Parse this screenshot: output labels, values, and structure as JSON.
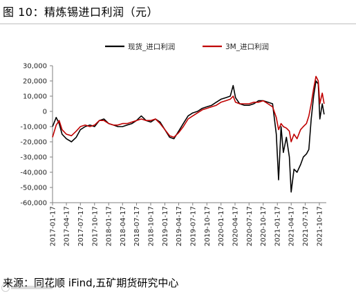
{
  "header": {
    "title": "图 10：精炼锡进口利润（元）"
  },
  "footer": {
    "source": "来源：同花顺 iFind,五矿期货研究中心"
  },
  "colors": {
    "spot": "#000000",
    "three_month": "#c00000",
    "axis": "#7f7f7f"
  },
  "chart_data": {
    "type": "line",
    "title": "",
    "xlabel": "",
    "ylabel": "",
    "ylim": [
      -60000,
      30000
    ],
    "y_ticks": [
      30000,
      20000,
      10000,
      0,
      -10000,
      -20000,
      -30000,
      -40000,
      -50000,
      -60000
    ],
    "y_tick_labels": [
      "30,000",
      "20,000",
      "10,000",
      "0",
      "-10,000",
      "-20,000",
      "-30,000",
      "-40,000",
      "-50,000",
      "-60,000"
    ],
    "x_ticks": [
      "2017-01-17",
      "2017-04-17",
      "2017-07-17",
      "2017-10-17",
      "2018-01-17",
      "2018-04-17",
      "2018-07-17",
      "2018-10-17",
      "2019-01-17",
      "2019-04-17",
      "2019-07-17",
      "2019-10-17",
      "2020-01-17",
      "2020-04-17",
      "2020-07-17",
      "2020-10-17",
      "2021-01-17",
      "2021-04-17",
      "2021-07-17",
      "2021-10-17"
    ],
    "legend_position": "top-center",
    "series": [
      {
        "name": "现货_进口利润",
        "points": [
          [
            "2017-01-17",
            -10000
          ],
          [
            "2017-02-10",
            -4000
          ],
          [
            "2017-03-01",
            -8000
          ],
          [
            "2017-03-20",
            -15000
          ],
          [
            "2017-04-17",
            -18000
          ],
          [
            "2017-05-20",
            -20000
          ],
          [
            "2017-06-20",
            -17000
          ],
          [
            "2017-07-17",
            -12000
          ],
          [
            "2017-08-17",
            -10000
          ],
          [
            "2017-09-17",
            -9000
          ],
          [
            "2017-10-17",
            -10000
          ],
          [
            "2017-11-17",
            -6000
          ],
          [
            "2017-12-17",
            -5000
          ],
          [
            "2018-01-17",
            -8000
          ],
          [
            "2018-02-17",
            -9000
          ],
          [
            "2018-03-17",
            -10000
          ],
          [
            "2018-04-17",
            -10000
          ],
          [
            "2018-05-17",
            -9000
          ],
          [
            "2018-06-17",
            -8000
          ],
          [
            "2018-07-17",
            -6000
          ],
          [
            "2018-08-17",
            -3000
          ],
          [
            "2018-09-17",
            -6000
          ],
          [
            "2018-10-17",
            -7000
          ],
          [
            "2018-11-17",
            -5000
          ],
          [
            "2018-12-17",
            -7000
          ],
          [
            "2019-01-17",
            -12000
          ],
          [
            "2019-02-17",
            -17000
          ],
          [
            "2019-03-17",
            -18000
          ],
          [
            "2019-04-17",
            -13000
          ],
          [
            "2019-05-17",
            -8000
          ],
          [
            "2019-06-17",
            -3000
          ],
          [
            "2019-07-17",
            -1000
          ],
          [
            "2019-08-17",
            0
          ],
          [
            "2019-09-17",
            2000
          ],
          [
            "2019-10-17",
            3000
          ],
          [
            "2019-11-17",
            4000
          ],
          [
            "2019-12-17",
            6000
          ],
          [
            "2020-01-17",
            8000
          ],
          [
            "2020-02-17",
            9000
          ],
          [
            "2020-03-17",
            10000
          ],
          [
            "2020-04-05",
            17000
          ],
          [
            "2020-04-20",
            9000
          ],
          [
            "2020-05-17",
            5000
          ],
          [
            "2020-06-17",
            4000
          ],
          [
            "2020-07-17",
            4000
          ],
          [
            "2020-08-17",
            5000
          ],
          [
            "2020-09-17",
            7000
          ],
          [
            "2020-10-17",
            7000
          ],
          [
            "2020-11-17",
            6000
          ],
          [
            "2020-12-17",
            5000
          ],
          [
            "2021-01-10",
            -15000
          ],
          [
            "2021-01-25",
            -45000
          ],
          [
            "2021-02-10",
            -10000
          ],
          [
            "2021-02-25",
            -27000
          ],
          [
            "2021-03-17",
            -17000
          ],
          [
            "2021-04-05",
            -30000
          ],
          [
            "2021-04-17",
            -53000
          ],
          [
            "2021-05-05",
            -38000
          ],
          [
            "2021-05-25",
            -40000
          ],
          [
            "2021-06-17",
            -35000
          ],
          [
            "2021-07-05",
            -30000
          ],
          [
            "2021-07-25",
            -28000
          ],
          [
            "2021-08-10",
            -25000
          ],
          [
            "2021-08-25",
            -5000
          ],
          [
            "2021-09-10",
            10000
          ],
          [
            "2021-09-25",
            20000
          ],
          [
            "2021-10-10",
            18000
          ],
          [
            "2021-10-20",
            -5000
          ],
          [
            "2021-11-05",
            5000
          ],
          [
            "2021-11-17",
            -2000
          ]
        ]
      },
      {
        "name": "3M_进口利润",
        "points": [
          [
            "2017-01-17",
            -17000
          ],
          [
            "2017-02-10",
            -9000
          ],
          [
            "2017-03-01",
            -6000
          ],
          [
            "2017-03-20",
            -12000
          ],
          [
            "2017-04-17",
            -15000
          ],
          [
            "2017-05-20",
            -16000
          ],
          [
            "2017-06-20",
            -13000
          ],
          [
            "2017-07-17",
            -10000
          ],
          [
            "2017-08-17",
            -9000
          ],
          [
            "2017-09-17",
            -10000
          ],
          [
            "2017-10-17",
            -9000
          ],
          [
            "2017-11-17",
            -6000
          ],
          [
            "2017-12-17",
            -6000
          ],
          [
            "2018-01-17",
            -8000
          ],
          [
            "2018-02-17",
            -9000
          ],
          [
            "2018-03-17",
            -9000
          ],
          [
            "2018-04-17",
            -8000
          ],
          [
            "2018-05-17",
            -8000
          ],
          [
            "2018-06-17",
            -7000
          ],
          [
            "2018-07-17",
            -6000
          ],
          [
            "2018-08-17",
            -5000
          ],
          [
            "2018-09-17",
            -6000
          ],
          [
            "2018-10-17",
            -6000
          ],
          [
            "2018-11-17",
            -5000
          ],
          [
            "2018-12-17",
            -8000
          ],
          [
            "2019-01-17",
            -12000
          ],
          [
            "2019-02-17",
            -16000
          ],
          [
            "2019-03-17",
            -17000
          ],
          [
            "2019-04-17",
            -14000
          ],
          [
            "2019-05-17",
            -10000
          ],
          [
            "2019-06-17",
            -5000
          ],
          [
            "2019-07-17",
            -3000
          ],
          [
            "2019-08-17",
            -1000
          ],
          [
            "2019-09-17",
            1000
          ],
          [
            "2019-10-17",
            2000
          ],
          [
            "2019-11-17",
            3000
          ],
          [
            "2019-12-17",
            4000
          ],
          [
            "2020-01-17",
            6000
          ],
          [
            "2020-02-17",
            7000
          ],
          [
            "2020-03-17",
            8000
          ],
          [
            "2020-04-05",
            10000
          ],
          [
            "2020-04-20",
            6000
          ],
          [
            "2020-05-17",
            5000
          ],
          [
            "2020-06-17",
            5000
          ],
          [
            "2020-07-17",
            5000
          ],
          [
            "2020-08-17",
            6000
          ],
          [
            "2020-09-17",
            6000
          ],
          [
            "2020-10-17",
            7000
          ],
          [
            "2020-11-17",
            5000
          ],
          [
            "2020-12-17",
            3000
          ],
          [
            "2021-01-10",
            -4000
          ],
          [
            "2021-01-25",
            -12000
          ],
          [
            "2021-02-10",
            -8000
          ],
          [
            "2021-02-25",
            -10000
          ],
          [
            "2021-03-17",
            -11000
          ],
          [
            "2021-04-05",
            -13000
          ],
          [
            "2021-04-17",
            -20000
          ],
          [
            "2021-05-05",
            -15000
          ],
          [
            "2021-05-25",
            -18000
          ],
          [
            "2021-06-17",
            -12000
          ],
          [
            "2021-07-05",
            -10000
          ],
          [
            "2021-07-25",
            -8000
          ],
          [
            "2021-08-10",
            -3000
          ],
          [
            "2021-08-25",
            5000
          ],
          [
            "2021-09-10",
            15000
          ],
          [
            "2021-09-25",
            23000
          ],
          [
            "2021-10-10",
            20000
          ],
          [
            "2021-10-20",
            5000
          ],
          [
            "2021-11-05",
            12000
          ],
          [
            "2021-11-17",
            5000
          ]
        ]
      }
    ]
  }
}
